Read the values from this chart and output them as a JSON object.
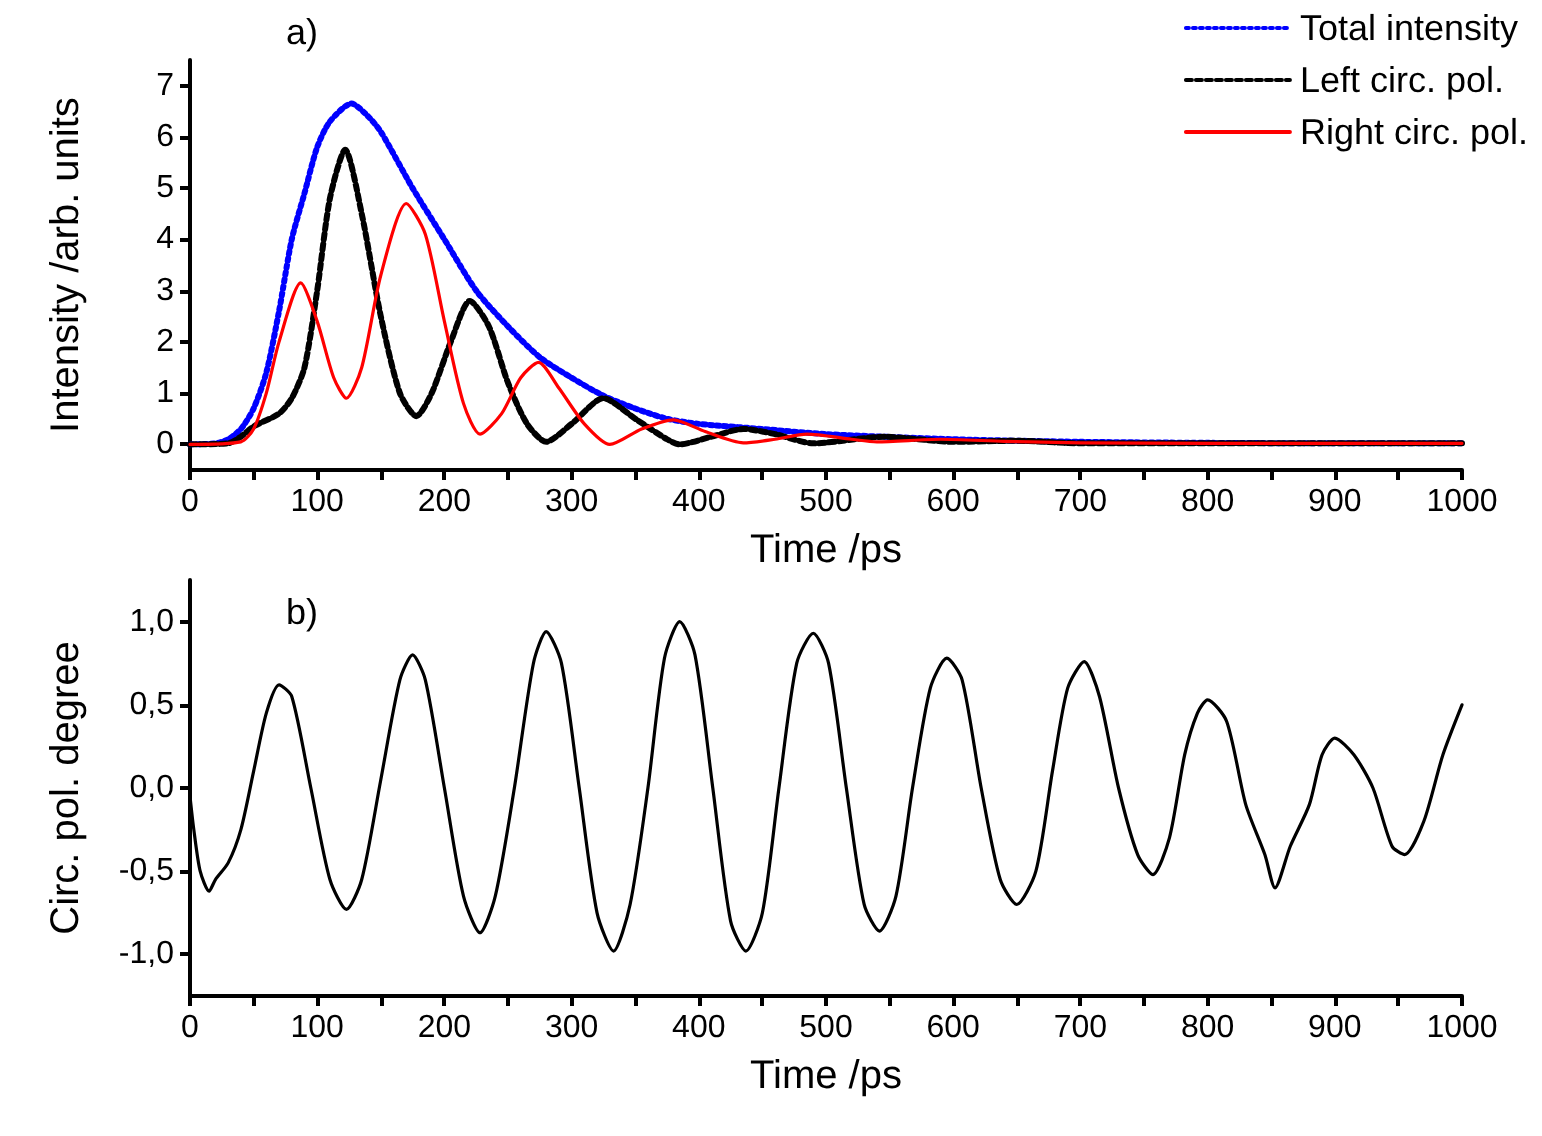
{
  "chart_data": [
    {
      "type": "line",
      "title": "a)",
      "xlabel": "Time /ps",
      "ylabel": "Intensity /arb. units",
      "xlim": [
        0,
        1000
      ],
      "ylim": [
        -0.5,
        7.5
      ],
      "xticks": [
        0,
        {
          "value": 50,
          "label": null
        },
        100,
        {
          "value": 150,
          "label": null
        },
        200,
        {
          "value": 250,
          "label": null
        },
        300,
        {
          "value": 350,
          "label": null
        },
        400,
        {
          "value": 450,
          "label": null
        },
        500,
        {
          "value": 550,
          "label": null
        },
        600,
        {
          "value": 650,
          "label": null
        },
        700,
        {
          "value": 750,
          "label": null
        },
        800,
        {
          "value": 850,
          "label": null
        },
        900,
        {
          "value": 950,
          "label": null
        },
        1000
      ],
      "yticks": [
        0,
        1,
        2,
        3,
        4,
        5,
        6,
        7
      ],
      "legend": "top right",
      "marker": "none",
      "series": [
        {
          "name": "Total intensity",
          "color": "#0000ff",
          "line_style": "dotted",
          "x": [
            0,
            20,
            30,
            40,
            50,
            60,
            70,
            80,
            90,
            100,
            110,
            127,
            140,
            150,
            175,
            200,
            225,
            250,
            275,
            300,
            325,
            350,
            375,
            400,
            450,
            500,
            600,
            700,
            800,
            900,
            1000
          ],
          "values": [
            0,
            0.02,
            0.1,
            0.3,
            0.7,
            1.4,
            2.6,
            4.0,
            4.9,
            5.8,
            6.3,
            6.65,
            6.4,
            6.1,
            5.0,
            4.0,
            3.0,
            2.3,
            1.7,
            1.3,
            0.95,
            0.7,
            0.5,
            0.4,
            0.3,
            0.2,
            0.1,
            0.05,
            0.03,
            0.02,
            0.02
          ]
        },
        {
          "name": "Left circ. pol.",
          "color": "#000000",
          "line_style": "dashed",
          "x": [
            0,
            30,
            40,
            50,
            70,
            80,
            90,
            100,
            110,
            122,
            135,
            150,
            165,
            178,
            190,
            205,
            220,
            235,
            250,
            265,
            280,
            300,
            325,
            350,
            375,
            385,
            410,
            435,
            460,
            490,
            530,
            545,
            600,
            650,
            700,
            800,
            900,
            1000
          ],
          "values": [
            0,
            0.02,
            0.15,
            0.35,
            0.6,
            0.9,
            1.5,
            3.0,
            4.8,
            5.75,
            4.5,
            2.5,
            1.0,
            0.55,
            1.0,
            2.0,
            2.8,
            2.3,
            1.2,
            0.4,
            0.05,
            0.4,
            0.9,
            0.5,
            0.1,
            0.0,
            0.15,
            0.3,
            0.2,
            0.02,
            0.12,
            0.15,
            0.05,
            0.07,
            0.02,
            0.02,
            0.02,
            0.02
          ]
        },
        {
          "name": "Right circ. pol.",
          "color": "#ff0000",
          "line_style": "solid",
          "x": [
            0,
            40,
            50,
            60,
            70,
            87,
            100,
            113,
            123,
            135,
            150,
            170,
            185,
            200,
            215,
            228,
            245,
            260,
            274,
            290,
            310,
            330,
            355,
            380,
            405,
            435,
            460,
            485,
            520,
            540,
            590,
            640,
            700,
            800,
            900,
            1000
          ],
          "values": [
            0,
            0.05,
            0.3,
            1.0,
            2.0,
            3.15,
            2.4,
            1.3,
            0.9,
            1.5,
            3.3,
            4.7,
            4.1,
            2.4,
            0.8,
            0.2,
            0.6,
            1.3,
            1.6,
            1.1,
            0.4,
            0.0,
            0.3,
            0.48,
            0.25,
            0.03,
            0.1,
            0.2,
            0.1,
            0.05,
            0.1,
            0.06,
            0.03,
            0.02,
            0.02,
            0.02
          ]
        }
      ]
    },
    {
      "type": "line",
      "title": "b)",
      "xlabel": "Time /ps",
      "ylabel": "Circ. pol. degree",
      "xlim": [
        0,
        1000
      ],
      "ylim": [
        -1.25,
        1.25
      ],
      "xticks": [
        0,
        {
          "value": 50,
          "label": null
        },
        100,
        {
          "value": 150,
          "label": null
        },
        200,
        {
          "value": 250,
          "label": null
        },
        300,
        {
          "value": 350,
          "label": null
        },
        400,
        {
          "value": 450,
          "label": null
        },
        500,
        {
          "value": 550,
          "label": null
        },
        600,
        {
          "value": 650,
          "label": null
        },
        700,
        {
          "value": 750,
          "label": null
        },
        800,
        {
          "value": 850,
          "label": null
        },
        900,
        {
          "value": 950,
          "label": null
        },
        1000
      ],
      "yticks": [
        {
          "value": -1,
          "label": "-1,0"
        },
        {
          "value": -0.5,
          "label": "-0,5"
        },
        {
          "value": 0,
          "label": "0,0"
        },
        {
          "value": 0.5,
          "label": "0,5"
        },
        {
          "value": 1,
          "label": "1,0"
        }
      ],
      "marker": "none",
      "series": [
        {
          "color": "#000000",
          "line_style": "solid",
          "x": [
            0,
            3,
            8,
            15,
            20,
            30,
            40,
            50,
            60,
            70,
            80,
            95,
            110,
            123,
            135,
            150,
            165,
            175,
            185,
            200,
            215,
            228,
            240,
            255,
            270,
            280,
            292,
            306,
            320,
            333,
            346,
            360,
            373,
            385,
            397,
            411,
            425,
            437,
            450,
            463,
            477,
            490,
            502,
            516,
            530,
            542,
            555,
            568,
            582,
            595,
            607,
            622,
            637,
            650,
            665,
            678,
            690,
            703,
            715,
            730,
            745,
            757,
            770,
            782,
            792,
            800,
            815,
            830,
            845,
            853,
            865,
            880,
            890,
            900,
            915,
            930,
            945,
            955,
            970,
            985,
            1000
          ],
          "values": [
            -0.05,
            -0.25,
            -0.5,
            -0.62,
            -0.55,
            -0.45,
            -0.25,
            0.1,
            0.45,
            0.62,
            0.55,
            0.0,
            -0.55,
            -0.73,
            -0.55,
            0.05,
            0.65,
            0.8,
            0.65,
            0.0,
            -0.65,
            -0.87,
            -0.65,
            0.0,
            0.75,
            0.94,
            0.75,
            0.0,
            -0.75,
            -0.98,
            -0.7,
            0.0,
            0.78,
            1.0,
            0.8,
            0.0,
            -0.8,
            -0.98,
            -0.75,
            0.0,
            0.75,
            0.93,
            0.75,
            0.0,
            -0.7,
            -0.86,
            -0.65,
            0.0,
            0.6,
            0.78,
            0.65,
            0.0,
            -0.55,
            -0.7,
            -0.5,
            0.1,
            0.6,
            0.76,
            0.55,
            0.0,
            -0.4,
            -0.52,
            -0.3,
            0.2,
            0.45,
            0.53,
            0.4,
            -0.1,
            -0.4,
            -0.6,
            -0.35,
            -0.1,
            0.2,
            0.3,
            0.2,
            0.0,
            -0.35,
            -0.4,
            -0.2,
            0.2,
            0.5
          ]
        }
      ]
    }
  ]
}
